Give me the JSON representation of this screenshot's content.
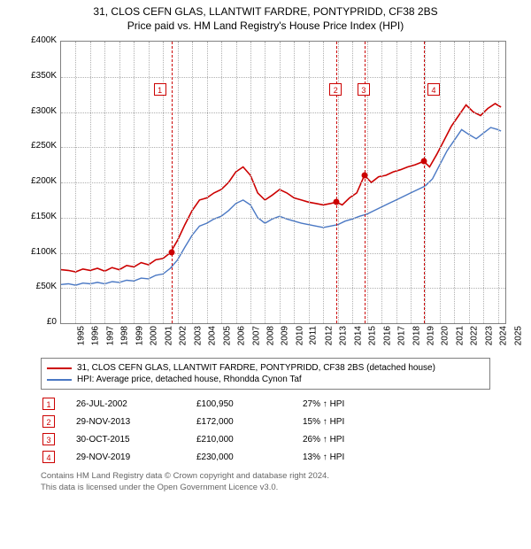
{
  "title_line1": "31, CLOS CEFN GLAS, LLANTWIT FARDRE, PONTYPRIDD, CF38 2BS",
  "title_line2": "Price paid vs. HM Land Registry's House Price Index (HPI)",
  "chart": {
    "type": "line",
    "background_color": "#ffffff",
    "grid_color": "#b0b0b0",
    "border_color": "#808080",
    "ylim": [
      0,
      400000
    ],
    "ytick_step": 50000,
    "yticks": [
      "£0",
      "£50K",
      "£100K",
      "£150K",
      "£200K",
      "£250K",
      "£300K",
      "£350K",
      "£400K"
    ],
    "x_start": 1995,
    "x_end": 2025.5,
    "xticks": [
      1995,
      1996,
      1997,
      1998,
      1999,
      2000,
      2001,
      2002,
      2003,
      2004,
      2005,
      2006,
      2007,
      2008,
      2009,
      2010,
      2011,
      2012,
      2013,
      2014,
      2015,
      2016,
      2017,
      2018,
      2019,
      2020,
      2021,
      2022,
      2023,
      2024,
      2025
    ],
    "tick_fontsize": 10,
    "sale_line_color": "#cc0000",
    "sale_line_dash": "3,3",
    "series": [
      {
        "name": "property",
        "label": "31, CLOS CEFN GLAS, LLANTWIT FARDRE, PONTYPRIDD, CF38 2BS (detached house)",
        "color": "#cc0000",
        "line_width": 1.6,
        "points": [
          [
            1995.0,
            76
          ],
          [
            1995.5,
            75
          ],
          [
            1996.0,
            73
          ],
          [
            1996.5,
            77
          ],
          [
            1997.0,
            75
          ],
          [
            1997.5,
            78
          ],
          [
            1998.0,
            74
          ],
          [
            1998.5,
            79
          ],
          [
            1999.0,
            76
          ],
          [
            1999.5,
            82
          ],
          [
            2000.0,
            80
          ],
          [
            2000.5,
            86
          ],
          [
            2001.0,
            83
          ],
          [
            2001.5,
            90
          ],
          [
            2002.0,
            92
          ],
          [
            2002.5,
            100
          ],
          [
            2003.0,
            118
          ],
          [
            2003.5,
            140
          ],
          [
            2004.0,
            160
          ],
          [
            2004.5,
            175
          ],
          [
            2005.0,
            178
          ],
          [
            2005.5,
            185
          ],
          [
            2006.0,
            190
          ],
          [
            2006.5,
            200
          ],
          [
            2007.0,
            215
          ],
          [
            2007.5,
            222
          ],
          [
            2008.0,
            210
          ],
          [
            2008.5,
            185
          ],
          [
            2009.0,
            175
          ],
          [
            2009.5,
            182
          ],
          [
            2010.0,
            190
          ],
          [
            2010.5,
            185
          ],
          [
            2011.0,
            178
          ],
          [
            2011.5,
            175
          ],
          [
            2012.0,
            172
          ],
          [
            2012.5,
            170
          ],
          [
            2013.0,
            168
          ],
          [
            2013.5,
            170
          ],
          [
            2013.9,
            172
          ],
          [
            2014.3,
            168
          ],
          [
            2014.8,
            178
          ],
          [
            2015.3,
            185
          ],
          [
            2015.83,
            210
          ],
          [
            2016.3,
            200
          ],
          [
            2016.8,
            208
          ],
          [
            2017.3,
            210
          ],
          [
            2017.8,
            215
          ],
          [
            2018.3,
            218
          ],
          [
            2018.8,
            222
          ],
          [
            2019.3,
            225
          ],
          [
            2019.9,
            230
          ],
          [
            2020.3,
            222
          ],
          [
            2020.8,
            240
          ],
          [
            2021.3,
            260
          ],
          [
            2021.8,
            280
          ],
          [
            2022.3,
            295
          ],
          [
            2022.8,
            310
          ],
          [
            2023.3,
            300
          ],
          [
            2023.8,
            295
          ],
          [
            2024.3,
            305
          ],
          [
            2024.8,
            312
          ],
          [
            2025.2,
            307
          ]
        ]
      },
      {
        "name": "hpi",
        "label": "HPI: Average price, detached house, Rhondda Cynon Taf",
        "color": "#4a78c4",
        "line_width": 1.4,
        "points": [
          [
            1995.0,
            55
          ],
          [
            1995.5,
            56
          ],
          [
            1996.0,
            54
          ],
          [
            1996.5,
            57
          ],
          [
            1997.0,
            56
          ],
          [
            1997.5,
            58
          ],
          [
            1998.0,
            56
          ],
          [
            1998.5,
            59
          ],
          [
            1999.0,
            58
          ],
          [
            1999.5,
            61
          ],
          [
            2000.0,
            60
          ],
          [
            2000.5,
            64
          ],
          [
            2001.0,
            63
          ],
          [
            2001.5,
            68
          ],
          [
            2002.0,
            70
          ],
          [
            2002.5,
            78
          ],
          [
            2003.0,
            90
          ],
          [
            2003.5,
            108
          ],
          [
            2004.0,
            125
          ],
          [
            2004.5,
            138
          ],
          [
            2005.0,
            142
          ],
          [
            2005.5,
            148
          ],
          [
            2006.0,
            152
          ],
          [
            2006.5,
            160
          ],
          [
            2007.0,
            170
          ],
          [
            2007.5,
            175
          ],
          [
            2008.0,
            168
          ],
          [
            2008.5,
            150
          ],
          [
            2009.0,
            142
          ],
          [
            2009.5,
            148
          ],
          [
            2010.0,
            152
          ],
          [
            2010.5,
            148
          ],
          [
            2011.0,
            145
          ],
          [
            2011.5,
            142
          ],
          [
            2012.0,
            140
          ],
          [
            2012.5,
            138
          ],
          [
            2013.0,
            136
          ],
          [
            2013.5,
            138
          ],
          [
            2014.0,
            140
          ],
          [
            2014.5,
            145
          ],
          [
            2015.0,
            148
          ],
          [
            2015.5,
            152
          ],
          [
            2016.0,
            155
          ],
          [
            2016.5,
            160
          ],
          [
            2017.0,
            165
          ],
          [
            2017.5,
            170
          ],
          [
            2018.0,
            175
          ],
          [
            2018.5,
            180
          ],
          [
            2019.0,
            185
          ],
          [
            2019.5,
            190
          ],
          [
            2020.0,
            195
          ],
          [
            2020.5,
            205
          ],
          [
            2021.0,
            225
          ],
          [
            2021.5,
            245
          ],
          [
            2022.0,
            260
          ],
          [
            2022.5,
            275
          ],
          [
            2023.0,
            268
          ],
          [
            2023.5,
            262
          ],
          [
            2024.0,
            270
          ],
          [
            2024.5,
            278
          ],
          [
            2025.0,
            275
          ],
          [
            2025.2,
            273
          ]
        ]
      }
    ],
    "sales": [
      {
        "n": "1",
        "year": 2002.57,
        "date": "26-JUL-2002",
        "price": "£100,950",
        "pct": "27% ↑ HPI",
        "price_k": 100.95
      },
      {
        "n": "2",
        "year": 2013.91,
        "date": "29-NOV-2013",
        "price": "£172,000",
        "pct": "15% ↑ HPI",
        "price_k": 172
      },
      {
        "n": "3",
        "year": 2015.83,
        "date": "30-OCT-2015",
        "price": "£210,000",
        "pct": "26% ↑ HPI",
        "price_k": 210
      },
      {
        "n": "4",
        "year": 2019.91,
        "date": "29-NOV-2019",
        "price": "£230,000",
        "pct": "13% ↑ HPI",
        "price_k": 230
      }
    ],
    "marker_y": 340
  },
  "legend": {
    "border_color": "#808080",
    "fontsize": 10
  },
  "footer_line1": "Contains HM Land Registry data © Crown copyright and database right 2024.",
  "footer_line2": "This data is licensed under the Open Government Licence v3.0."
}
